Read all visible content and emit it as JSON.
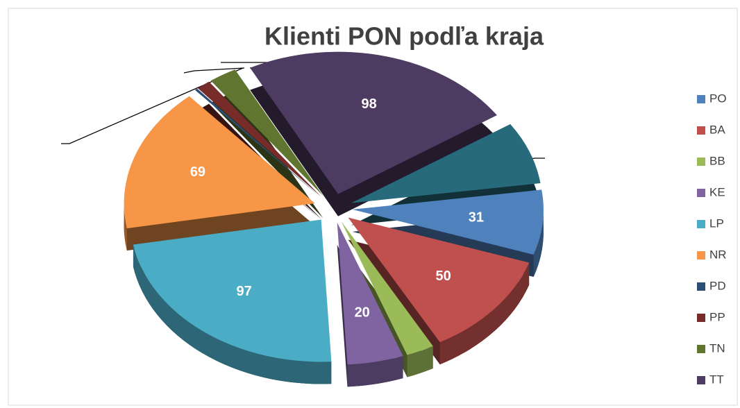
{
  "chart_data": {
    "type": "pie",
    "title": "Klienti PON podľa kraja",
    "categories": [
      "PO",
      "BA",
      "BB",
      "KE",
      "LP",
      "NR",
      "PD",
      "PP",
      "TN",
      "TT",
      null
    ],
    "values": [
      31,
      50,
      10,
      20,
      97,
      69,
      1,
      5,
      10,
      98,
      30
    ],
    "value_labels": [
      31,
      50,
      null,
      20,
      97,
      69,
      null,
      null,
      null,
      98,
      null
    ],
    "colors": [
      "#4f81bd",
      "#c0504d",
      "#9bbb59",
      "#8064a2",
      "#4bacc6",
      "#f79646",
      "#2c4d75",
      "#772c2a",
      "#5f7530",
      "#4d3b62",
      "#276a7c"
    ],
    "legend": "right"
  }
}
